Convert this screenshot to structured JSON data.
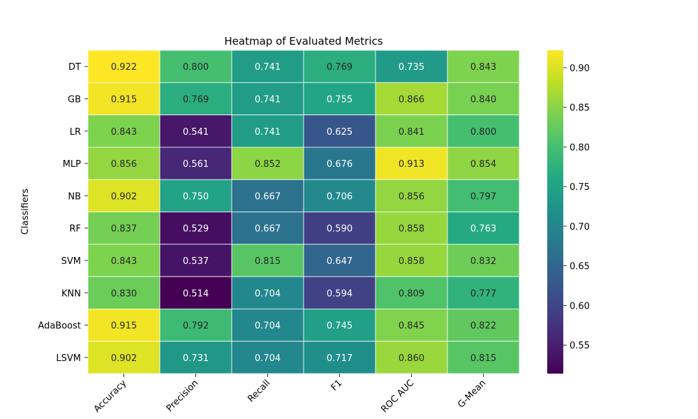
{
  "chart_data": {
    "type": "heatmap",
    "title": "Heatmap of Evaluated Metrics",
    "xlabel": "",
    "ylabel": "Classifiers",
    "colormap": "viridis",
    "columns": [
      "Accuracy",
      "Precision",
      "Recall",
      "F1",
      "ROC AUC",
      "G-Mean"
    ],
    "rows": [
      "DT",
      "GB",
      "LR",
      "MLP",
      "NB",
      "RF",
      "SVM",
      "KNN",
      "AdaBoost",
      "LSVM"
    ],
    "values": [
      [
        0.922,
        0.8,
        0.741,
        0.769,
        0.735,
        0.843
      ],
      [
        0.915,
        0.769,
        0.741,
        0.755,
        0.866,
        0.84
      ],
      [
        0.843,
        0.541,
        0.741,
        0.625,
        0.841,
        0.8
      ],
      [
        0.856,
        0.561,
        0.852,
        0.676,
        0.913,
        0.854
      ],
      [
        0.902,
        0.75,
        0.667,
        0.706,
        0.856,
        0.797
      ],
      [
        0.837,
        0.529,
        0.667,
        0.59,
        0.858,
        0.763
      ],
      [
        0.843,
        0.537,
        0.815,
        0.647,
        0.858,
        0.832
      ],
      [
        0.83,
        0.514,
        0.704,
        0.594,
        0.809,
        0.777
      ],
      [
        0.915,
        0.792,
        0.704,
        0.745,
        0.845,
        0.822
      ],
      [
        0.902,
        0.731,
        0.704,
        0.717,
        0.86,
        0.815
      ]
    ],
    "value_format": "0.000",
    "colorbar": {
      "range": [
        0.514,
        0.922
      ],
      "ticks": [
        "0.55",
        "0.60",
        "0.65",
        "0.70",
        "0.75",
        "0.80",
        "0.85",
        "0.90"
      ]
    },
    "grid": false,
    "legend": "colorbar-right"
  }
}
